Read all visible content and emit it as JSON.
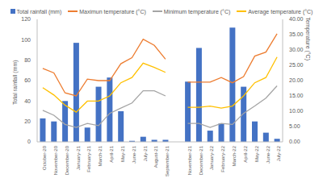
{
  "chart_data": {
    "type": "bar",
    "categories": [
      "October-20",
      "November-20",
      "December-20",
      "January-21",
      "February-21",
      "March-21",
      "April-21",
      "May-21",
      "June-21",
      "July-21",
      "August-21",
      "September-21",
      null,
      "November-21",
      "December-21",
      "January-22",
      "February-22",
      "March-22",
      "April-22",
      "May-22",
      "June-22",
      "July-22"
    ],
    "series": [
      {
        "name": "Total rainfall (mm)",
        "type": "bar",
        "color": "#4472c4",
        "values": [
          23,
          20,
          40,
          97,
          14,
          54,
          63,
          30,
          1,
          5,
          2,
          2,
          null,
          59,
          92,
          11,
          18,
          112,
          54,
          20,
          9,
          3
        ]
      },
      {
        "name": "Maximun temperature (°C)",
        "type": "line",
        "color": "#ed7d31",
        "axis": "y2",
        "values": [
          24,
          22.5,
          16,
          15,
          20.5,
          20,
          20,
          25.5,
          27.5,
          33.5,
          31.5,
          27,
          null,
          19.5,
          19.5,
          19.5,
          21,
          19.3,
          21.3,
          28,
          29.3,
          35.3
        ]
      },
      {
        "name": "Minimum temperature (°C)",
        "type": "line",
        "color": "#a5a5a5",
        "axis": "y2",
        "values": [
          10.3,
          8.7,
          5.7,
          4.7,
          6,
          5.3,
          9.3,
          11,
          12.7,
          16.7,
          16.7,
          15,
          null,
          6,
          6,
          4.7,
          6,
          5.7,
          9.3,
          11.7,
          14.3,
          18.3
        ]
      },
      {
        "name": "Average temperature (°C)",
        "type": "line",
        "color": "#ffc000",
        "axis": "y2",
        "values": [
          17.7,
          15.3,
          12,
          9.7,
          13.3,
          13.3,
          15,
          19.3,
          21,
          25.7,
          24.3,
          22.7,
          null,
          11.3,
          11.3,
          11.7,
          11,
          11.7,
          15,
          19.3,
          21,
          27.7
        ]
      }
    ],
    "y_label": "Total rainfall (mm)",
    "y2_label": "Temperature (°C)",
    "ylim": [
      0,
      120
    ],
    "yticks": [
      0,
      20,
      40,
      60,
      80,
      100,
      120
    ],
    "y2lim": [
      0,
      40
    ],
    "y2ticks": [
      {
        "value": 0,
        "label": "0.00"
      },
      {
        "value": 5,
        "label": "5.00"
      },
      {
        "value": 10,
        "label": "10.00"
      },
      {
        "value": 15,
        "label": "15.00"
      },
      {
        "value": 20,
        "label": "20.00"
      },
      {
        "value": 25,
        "label": "25.00"
      },
      {
        "value": 30,
        "label": "30.00"
      },
      {
        "value": 35,
        "label": "35.00"
      },
      {
        "value": 40,
        "label": "40.00"
      }
    ],
    "grid": false,
    "legend": "top"
  }
}
